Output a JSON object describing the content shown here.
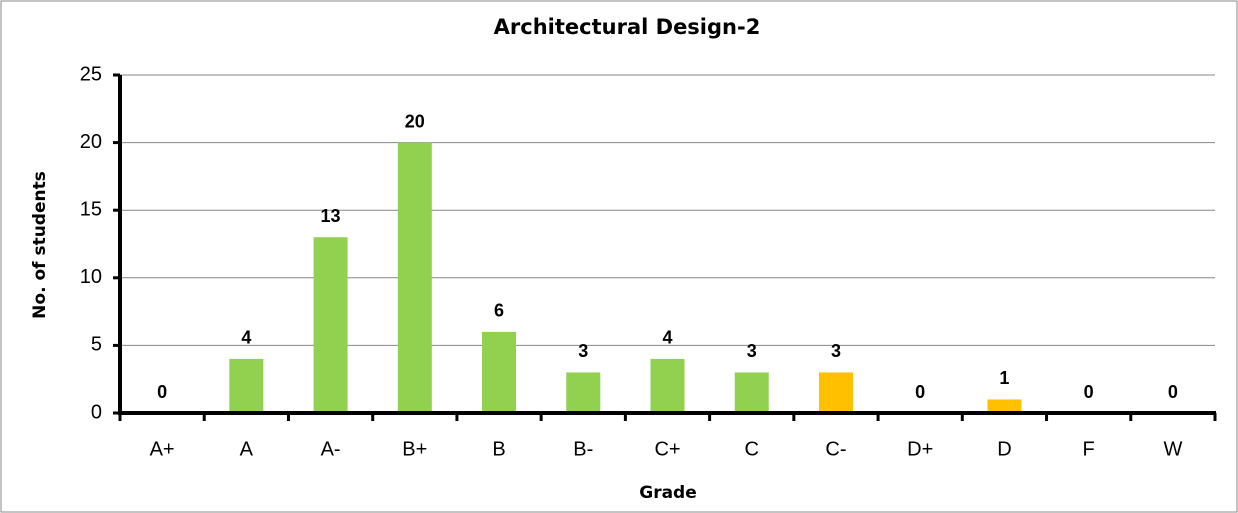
{
  "chart_data": {
    "type": "bar",
    "title": "Architectural Design-2",
    "xlabel": "Grade",
    "ylabel": "No. of students",
    "categories": [
      "A+",
      "A",
      "A-",
      "B+",
      "B",
      "B-",
      "C+",
      "C",
      "C-",
      "D+",
      "D",
      "F",
      "W"
    ],
    "values": [
      0,
      4,
      13,
      20,
      6,
      3,
      4,
      3,
      3,
      0,
      1,
      0,
      0
    ],
    "colors": [
      "#92d050",
      "#92d050",
      "#92d050",
      "#92d050",
      "#92d050",
      "#92d050",
      "#92d050",
      "#92d050",
      "#ffc000",
      "#ffc000",
      "#ffc000",
      "#ffc000",
      "#ffc000"
    ],
    "ylim": [
      0,
      25
    ],
    "yticks": [
      0,
      5,
      10,
      15,
      20,
      25
    ],
    "grid": true
  }
}
